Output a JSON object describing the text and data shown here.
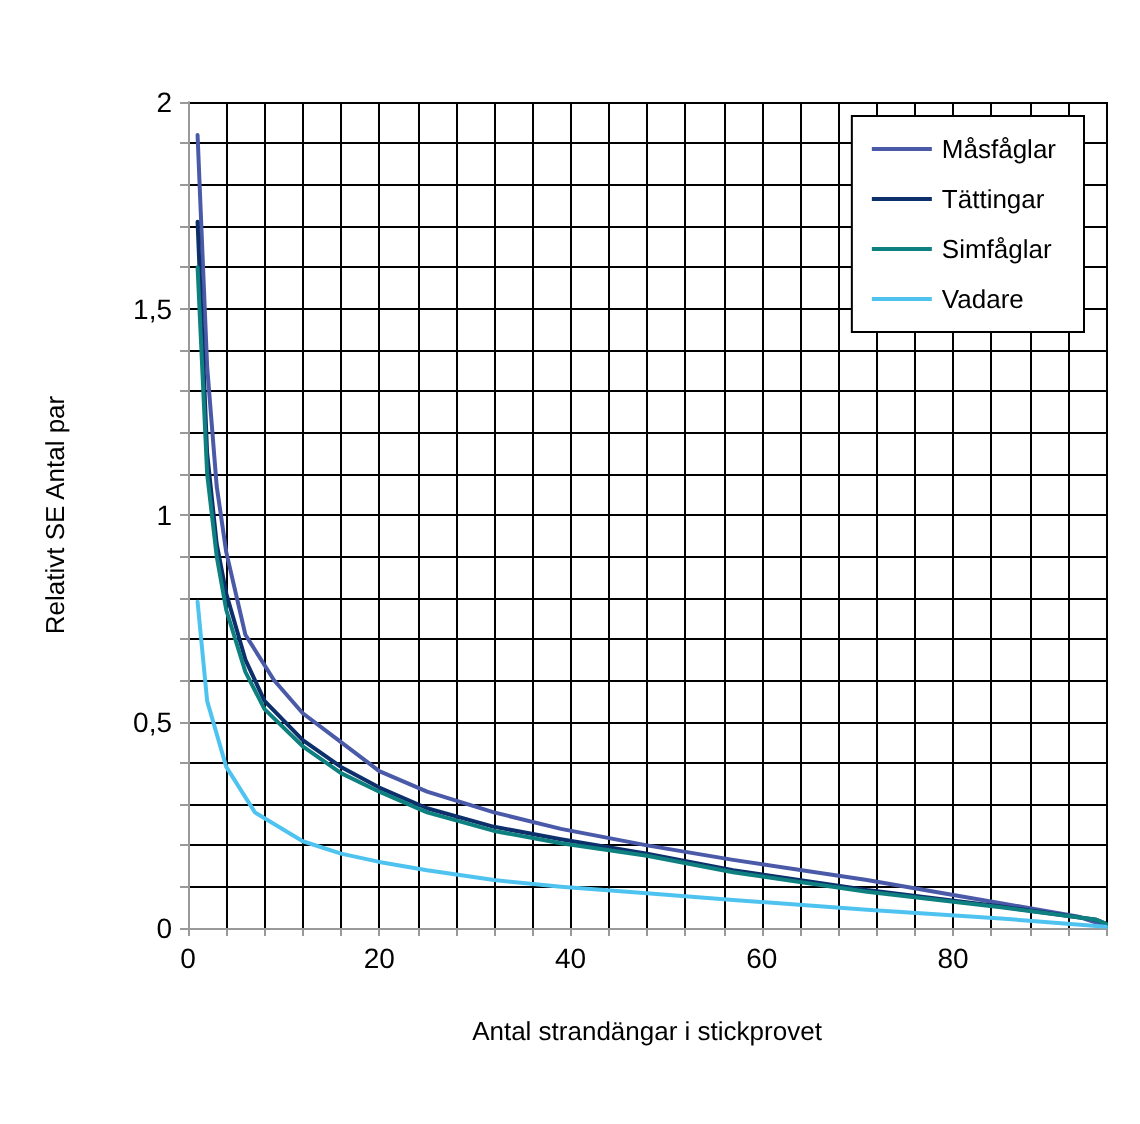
{
  "chart_data": {
    "type": "line",
    "xlabel": "Antal strandängar i stickprovet",
    "ylabel": "Relativt SE Antal par",
    "xlim": [
      0,
      96
    ],
    "xticks": [
      0,
      {
        "value": 4,
        "label": null
      },
      {
        "value": 8,
        "label": null
      },
      {
        "value": 12,
        "label": null
      },
      {
        "value": 16,
        "label": null
      },
      20,
      {
        "value": 24,
        "label": null
      },
      {
        "value": 28,
        "label": null
      },
      {
        "value": 32,
        "label": null
      },
      {
        "value": 36,
        "label": null
      },
      40,
      {
        "value": 44,
        "label": null
      },
      {
        "value": 48,
        "label": null
      },
      {
        "value": 52,
        "label": null
      },
      {
        "value": 56,
        "label": null
      },
      60,
      {
        "value": 64,
        "label": null
      },
      {
        "value": 68,
        "label": null
      },
      {
        "value": 72,
        "label": null
      },
      {
        "value": 76,
        "label": null
      },
      80,
      {
        "value": 84,
        "label": null
      },
      {
        "value": 88,
        "label": null
      },
      {
        "value": 92,
        "label": null
      },
      {
        "value": 96,
        "label": null
      }
    ],
    "ylim": [
      0,
      2
    ],
    "yticks": [
      0,
      {
        "value": 0.1,
        "label": null
      },
      {
        "value": 0.2,
        "label": null
      },
      {
        "value": 0.3,
        "label": null
      },
      {
        "value": 0.4,
        "label": null
      },
      {
        "value": 0.5,
        "label": "0,5"
      },
      {
        "value": 0.6,
        "label": null
      },
      {
        "value": 0.7,
        "label": null
      },
      {
        "value": 0.8,
        "label": null
      },
      {
        "value": 0.9,
        "label": null
      },
      1,
      {
        "value": 1.1,
        "label": null
      },
      {
        "value": 1.2,
        "label": null
      },
      {
        "value": 1.3,
        "label": null
      },
      {
        "value": 1.4,
        "label": null
      },
      {
        "value": 1.5,
        "label": "1,5"
      },
      {
        "value": 1.6,
        "label": null
      },
      {
        "value": 1.7,
        "label": null
      },
      {
        "value": 1.8,
        "label": null
      },
      {
        "value": 1.9,
        "label": null
      },
      2
    ],
    "grid": true,
    "legend": "top right",
    "marker": "none",
    "line_style": "solid",
    "series": [
      {
        "name": "Måsfåglar",
        "color": "#4a5aa8",
        "x": [
          1,
          2,
          3,
          4,
          6,
          9,
          12,
          16,
          20,
          25,
          32,
          39,
          48,
          57,
          71,
          85,
          93,
          96
        ],
        "values": [
          1.92,
          1.36,
          1.07,
          0.91,
          0.71,
          0.6,
          0.52,
          0.45,
          0.38,
          0.33,
          0.28,
          0.24,
          0.2,
          0.165,
          0.116,
          0.06,
          0.028,
          0.005
        ]
      },
      {
        "name": "Tättingar",
        "color": "#0d2f6b",
        "x": [
          1,
          2,
          3,
          4,
          6,
          8,
          12,
          16,
          20,
          25,
          32,
          39,
          48,
          57,
          71,
          85,
          95,
          96
        ],
        "values": [
          1.71,
          1.15,
          0.93,
          0.81,
          0.65,
          0.55,
          0.455,
          0.39,
          0.34,
          0.29,
          0.245,
          0.215,
          0.18,
          0.14,
          0.092,
          0.052,
          0.02,
          0.01
        ]
      },
      {
        "name": "Simfåglar",
        "color": "#0f8080",
        "x": [
          1,
          2,
          3,
          4,
          6,
          8,
          12,
          16,
          20,
          25,
          32,
          39,
          48,
          57,
          71,
          85,
          95,
          96
        ],
        "values": [
          1.6,
          1.1,
          0.9,
          0.77,
          0.62,
          0.53,
          0.44,
          0.375,
          0.33,
          0.28,
          0.235,
          0.205,
          0.175,
          0.135,
          0.088,
          0.05,
          0.02,
          0.01
        ]
      },
      {
        "name": "Vadare",
        "color": "#4fc3f0",
        "x": [
          1,
          2,
          4,
          7,
          12,
          16,
          20,
          25,
          32,
          39,
          48,
          57,
          71,
          85,
          96
        ],
        "values": [
          0.79,
          0.55,
          0.39,
          0.28,
          0.21,
          0.18,
          0.16,
          0.14,
          0.116,
          0.1,
          0.084,
          0.068,
          0.044,
          0.023,
          0.003
        ]
      }
    ]
  }
}
